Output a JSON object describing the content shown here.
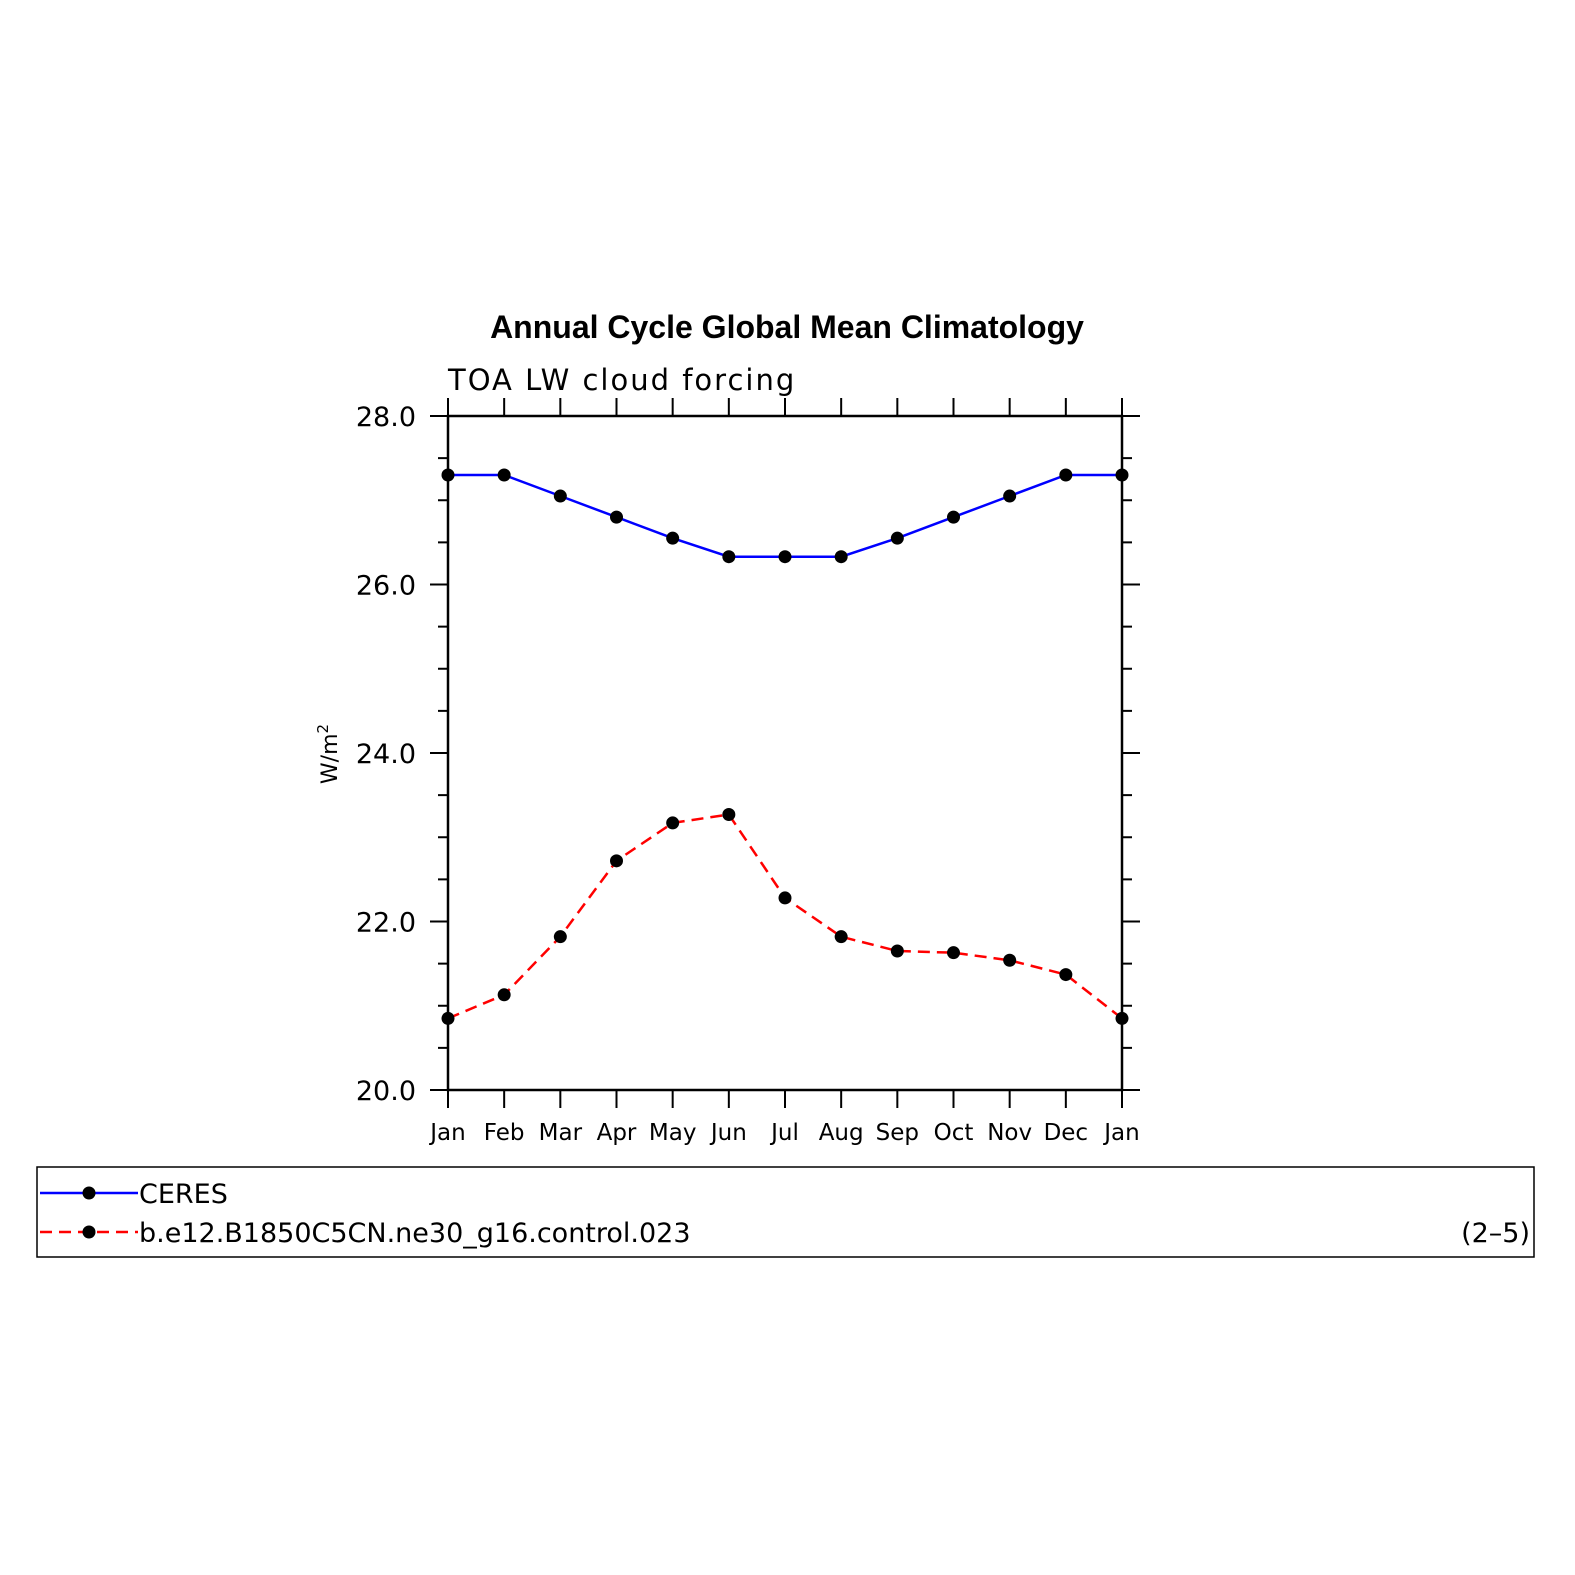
{
  "chart_data": {
    "type": "line",
    "title": "Annual Cycle Global Mean Climatology",
    "subtitle": "TOA LW cloud forcing",
    "ylabel_base": "W/m",
    "ylabel_sup": "2",
    "xlabel": "",
    "ylim": [
      20.0,
      28.0
    ],
    "yticks": [
      "20.0",
      "22.0",
      "24.0",
      "26.0",
      "28.0"
    ],
    "y_minor_step": 0.5,
    "categories": [
      "Jan",
      "Feb",
      "Mar",
      "Apr",
      "May",
      "Jun",
      "Jul",
      "Aug",
      "Sep",
      "Oct",
      "Nov",
      "Dec",
      "Jan"
    ],
    "series": [
      {
        "name": "CERES",
        "color": "#0000ff",
        "dash": "solid",
        "values": [
          27.3,
          27.3,
          27.05,
          26.8,
          26.55,
          26.33,
          26.33,
          26.33,
          26.55,
          26.8,
          27.05,
          27.3,
          27.3
        ]
      },
      {
        "name": "b.e12.B1850C5CN.ne30_g16.control.023",
        "color": "#ff0000",
        "dash": "dashed",
        "values": [
          20.85,
          21.13,
          21.82,
          22.72,
          23.17,
          23.27,
          22.28,
          21.82,
          21.65,
          21.63,
          21.54,
          21.37,
          20.85
        ]
      }
    ],
    "grid": false,
    "legend_position": "bottom",
    "panel_label": "(2–5)"
  }
}
